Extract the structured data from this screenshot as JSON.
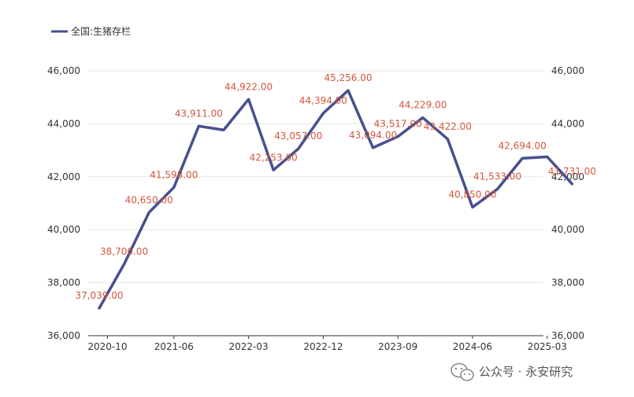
{
  "chart_data": {
    "type": "line",
    "title": "",
    "xlabel": "",
    "ylabel": "",
    "legend": {
      "position": "top-left",
      "entries": [
        "全国:生猪存栏"
      ]
    },
    "series": [
      {
        "name": "全国:生猪存栏",
        "color": "#47508e",
        "labels": [
          "37,039.00",
          "38,700.00",
          "40,650.00",
          "41,598.00",
          "43,911.00",
          "",
          "44,922.00",
          "42,253.00",
          "43,057.00",
          "44,394.00",
          "45,256.00",
          "43,094.00",
          "43,517.00",
          "44,229.00",
          "43,422.00",
          "40,850.00",
          "41,533.00",
          "42,694.00",
          "",
          "41,731.00"
        ],
        "values": [
          37039,
          38700,
          40650,
          41598,
          43911,
          43764,
          44922,
          42253,
          43057,
          44394,
          45256,
          43094,
          43517,
          44229,
          43422,
          40850,
          41533,
          42694,
          42750,
          41731
        ]
      }
    ],
    "x": [
      "2020-09",
      "2020-12",
      "2021-03",
      "2021-06",
      "2021-09",
      "2021-12",
      "2022-03",
      "2022-06",
      "2022-09",
      "2022-12",
      "2023-03",
      "2023-06",
      "2023-09",
      "2023-12",
      "2024-03",
      "2024-06",
      "2024-09",
      "2024-12",
      "2025-03",
      "2025-06"
    ],
    "x_ticks": [
      "2020-10",
      "2021-06",
      "2022-03",
      "2022-12",
      "2023-09",
      "2024-06",
      "2025-03"
    ],
    "x_tick_index": [
      0.33,
      3,
      6,
      9,
      12,
      15,
      18
    ],
    "ylim": [
      36000,
      46000
    ],
    "y_ticks": [
      "36,000",
      "38,000",
      "40,000",
      "42,000",
      "44,000",
      "46,000"
    ],
    "y_tick_values": [
      36000,
      38000,
      40000,
      42000,
      44000,
      46000
    ],
    "right_axis": true,
    "grid": "horizontal",
    "label_color": "#d2573a"
  },
  "watermark": {
    "text": "公众号 · 永安研究",
    "icon": "wechat-icon"
  }
}
